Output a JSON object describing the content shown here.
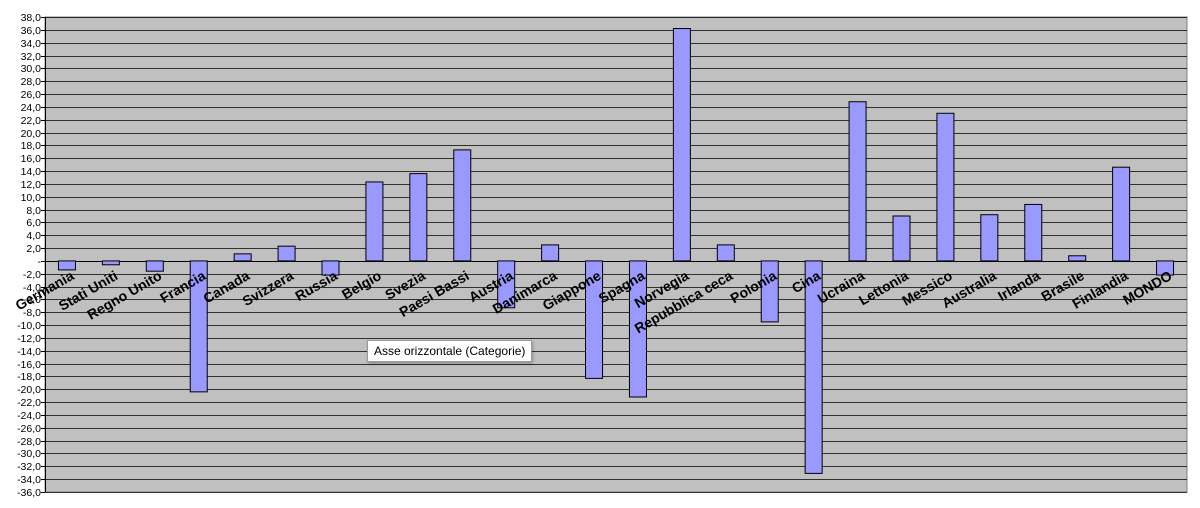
{
  "chart_data": {
    "type": "bar",
    "title": "",
    "xlabel": "",
    "ylabel": "",
    "ylim": [
      -36,
      38
    ],
    "ytick_step": 2,
    "zero_tick_label": "-",
    "grid": true,
    "legend": "none",
    "categories": [
      "Germania",
      "Stati Uniti",
      "Regno Unito",
      "Francia",
      "Canada",
      "Svizzera",
      "Russia",
      "Belgio",
      "Svezia",
      "Paesi Bassi",
      "Austria",
      "Danimarca",
      "Giappone",
      "Spagna",
      "Norvegia",
      "Repubblica ceca",
      "Polonia",
      "Cina",
      "Ucraina",
      "Lettonia",
      "Messico",
      "Australia",
      "Irlanda",
      "Brasile",
      "Finlandia",
      "MONDO"
    ],
    "values": [
      -1.4,
      -0.6,
      -1.6,
      -20.4,
      1.1,
      2.3,
      -2.2,
      12.3,
      13.6,
      17.3,
      -7.3,
      2.5,
      -18.3,
      -21.2,
      36.2,
      2.5,
      -9.5,
      -33.1,
      24.8,
      7.0,
      23.0,
      7.2,
      8.8,
      0.8,
      14.6,
      -2.2
    ],
    "colors": {
      "plot_bg": "#c0c0c0",
      "bar_fill": "#9999ff",
      "bar_stroke": "#000000",
      "grid": "#000000"
    }
  },
  "tooltip": {
    "text": "Asse orizzontale (Categorie)"
  }
}
